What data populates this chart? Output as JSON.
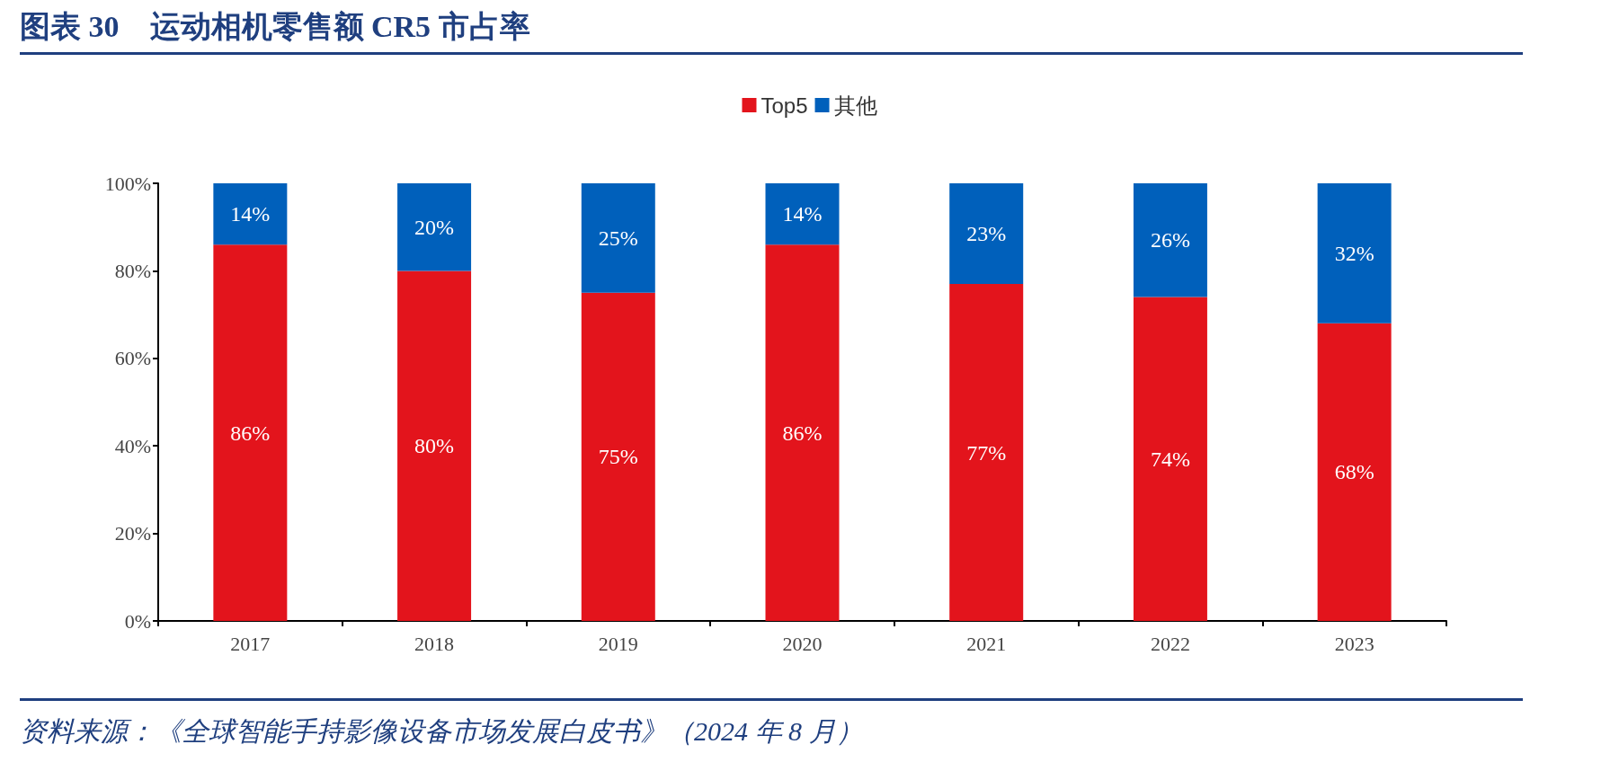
{
  "chart_data": {
    "type": "bar",
    "title": "图表 30　运动相机零售额 CR5 市占率",
    "categories": [
      "2017",
      "2018",
      "2019",
      "2020",
      "2021",
      "2022",
      "2023"
    ],
    "stacked": true,
    "series": [
      {
        "name": "Top5",
        "color": "#e3141c",
        "values": [
          86,
          80,
          75,
          86,
          77,
          74,
          68
        ],
        "value_labels": [
          "86%",
          "80%",
          "75%",
          "86%",
          "77%",
          "74%",
          "68%"
        ]
      },
      {
        "name": "其他",
        "color": "#0060bb",
        "values": [
          14,
          20,
          25,
          14,
          23,
          26,
          32
        ],
        "value_labels": [
          "14%",
          "20%",
          "25%",
          "14%",
          "23%",
          "26%",
          "32%"
        ]
      }
    ],
    "ylim": [
      0,
      100
    ],
    "yticks": [
      {
        "value": 0,
        "label": "0%"
      },
      {
        "value": 20,
        "label": "20%"
      },
      {
        "value": 40,
        "label": "40%"
      },
      {
        "value": 60,
        "label": "60%"
      },
      {
        "value": 80,
        "label": "80%"
      },
      {
        "value": 100,
        "label": "100%"
      }
    ],
    "grid": false,
    "legend": "top",
    "annotations": [
      "资料来源：《全球智能手持影像设备市场发展白皮书》（2024 年 8 月）"
    ]
  }
}
